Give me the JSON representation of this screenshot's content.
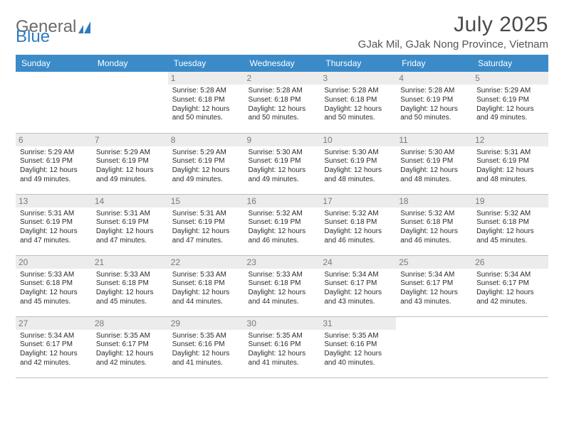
{
  "brand": {
    "name_a": "General",
    "name_b": "Blue"
  },
  "title": {
    "month": "July 2025",
    "location": "GJak Mil, GJak Nong Province, Vietnam"
  },
  "colors": {
    "header_bg": "#3b8bc9",
    "header_text": "#ffffff",
    "daynum_bg": "#ececec",
    "daynum_text": "#7a7a7a",
    "body_text": "#2b2b2b",
    "divider": "#bfbfbf",
    "brand_gray": "#6b6b6b",
    "brand_blue": "#2f7bbf"
  },
  "weekdays": [
    "Sunday",
    "Monday",
    "Tuesday",
    "Wednesday",
    "Thursday",
    "Friday",
    "Saturday"
  ],
  "weeks": [
    [
      {
        "n": "",
        "sr": "",
        "ss": "",
        "dl": ""
      },
      {
        "n": "",
        "sr": "",
        "ss": "",
        "dl": ""
      },
      {
        "n": "1",
        "sr": "Sunrise: 5:28 AM",
        "ss": "Sunset: 6:18 PM",
        "dl": "Daylight: 12 hours and 50 minutes."
      },
      {
        "n": "2",
        "sr": "Sunrise: 5:28 AM",
        "ss": "Sunset: 6:18 PM",
        "dl": "Daylight: 12 hours and 50 minutes."
      },
      {
        "n": "3",
        "sr": "Sunrise: 5:28 AM",
        "ss": "Sunset: 6:18 PM",
        "dl": "Daylight: 12 hours and 50 minutes."
      },
      {
        "n": "4",
        "sr": "Sunrise: 5:28 AM",
        "ss": "Sunset: 6:19 PM",
        "dl": "Daylight: 12 hours and 50 minutes."
      },
      {
        "n": "5",
        "sr": "Sunrise: 5:29 AM",
        "ss": "Sunset: 6:19 PM",
        "dl": "Daylight: 12 hours and 49 minutes."
      }
    ],
    [
      {
        "n": "6",
        "sr": "Sunrise: 5:29 AM",
        "ss": "Sunset: 6:19 PM",
        "dl": "Daylight: 12 hours and 49 minutes."
      },
      {
        "n": "7",
        "sr": "Sunrise: 5:29 AM",
        "ss": "Sunset: 6:19 PM",
        "dl": "Daylight: 12 hours and 49 minutes."
      },
      {
        "n": "8",
        "sr": "Sunrise: 5:29 AM",
        "ss": "Sunset: 6:19 PM",
        "dl": "Daylight: 12 hours and 49 minutes."
      },
      {
        "n": "9",
        "sr": "Sunrise: 5:30 AM",
        "ss": "Sunset: 6:19 PM",
        "dl": "Daylight: 12 hours and 49 minutes."
      },
      {
        "n": "10",
        "sr": "Sunrise: 5:30 AM",
        "ss": "Sunset: 6:19 PM",
        "dl": "Daylight: 12 hours and 48 minutes."
      },
      {
        "n": "11",
        "sr": "Sunrise: 5:30 AM",
        "ss": "Sunset: 6:19 PM",
        "dl": "Daylight: 12 hours and 48 minutes."
      },
      {
        "n": "12",
        "sr": "Sunrise: 5:31 AM",
        "ss": "Sunset: 6:19 PM",
        "dl": "Daylight: 12 hours and 48 minutes."
      }
    ],
    [
      {
        "n": "13",
        "sr": "Sunrise: 5:31 AM",
        "ss": "Sunset: 6:19 PM",
        "dl": "Daylight: 12 hours and 47 minutes."
      },
      {
        "n": "14",
        "sr": "Sunrise: 5:31 AM",
        "ss": "Sunset: 6:19 PM",
        "dl": "Daylight: 12 hours and 47 minutes."
      },
      {
        "n": "15",
        "sr": "Sunrise: 5:31 AM",
        "ss": "Sunset: 6:19 PM",
        "dl": "Daylight: 12 hours and 47 minutes."
      },
      {
        "n": "16",
        "sr": "Sunrise: 5:32 AM",
        "ss": "Sunset: 6:19 PM",
        "dl": "Daylight: 12 hours and 46 minutes."
      },
      {
        "n": "17",
        "sr": "Sunrise: 5:32 AM",
        "ss": "Sunset: 6:18 PM",
        "dl": "Daylight: 12 hours and 46 minutes."
      },
      {
        "n": "18",
        "sr": "Sunrise: 5:32 AM",
        "ss": "Sunset: 6:18 PM",
        "dl": "Daylight: 12 hours and 46 minutes."
      },
      {
        "n": "19",
        "sr": "Sunrise: 5:32 AM",
        "ss": "Sunset: 6:18 PM",
        "dl": "Daylight: 12 hours and 45 minutes."
      }
    ],
    [
      {
        "n": "20",
        "sr": "Sunrise: 5:33 AM",
        "ss": "Sunset: 6:18 PM",
        "dl": "Daylight: 12 hours and 45 minutes."
      },
      {
        "n": "21",
        "sr": "Sunrise: 5:33 AM",
        "ss": "Sunset: 6:18 PM",
        "dl": "Daylight: 12 hours and 45 minutes."
      },
      {
        "n": "22",
        "sr": "Sunrise: 5:33 AM",
        "ss": "Sunset: 6:18 PM",
        "dl": "Daylight: 12 hours and 44 minutes."
      },
      {
        "n": "23",
        "sr": "Sunrise: 5:33 AM",
        "ss": "Sunset: 6:18 PM",
        "dl": "Daylight: 12 hours and 44 minutes."
      },
      {
        "n": "24",
        "sr": "Sunrise: 5:34 AM",
        "ss": "Sunset: 6:17 PM",
        "dl": "Daylight: 12 hours and 43 minutes."
      },
      {
        "n": "25",
        "sr": "Sunrise: 5:34 AM",
        "ss": "Sunset: 6:17 PM",
        "dl": "Daylight: 12 hours and 43 minutes."
      },
      {
        "n": "26",
        "sr": "Sunrise: 5:34 AM",
        "ss": "Sunset: 6:17 PM",
        "dl": "Daylight: 12 hours and 42 minutes."
      }
    ],
    [
      {
        "n": "27",
        "sr": "Sunrise: 5:34 AM",
        "ss": "Sunset: 6:17 PM",
        "dl": "Daylight: 12 hours and 42 minutes."
      },
      {
        "n": "28",
        "sr": "Sunrise: 5:35 AM",
        "ss": "Sunset: 6:17 PM",
        "dl": "Daylight: 12 hours and 42 minutes."
      },
      {
        "n": "29",
        "sr": "Sunrise: 5:35 AM",
        "ss": "Sunset: 6:16 PM",
        "dl": "Daylight: 12 hours and 41 minutes."
      },
      {
        "n": "30",
        "sr": "Sunrise: 5:35 AM",
        "ss": "Sunset: 6:16 PM",
        "dl": "Daylight: 12 hours and 41 minutes."
      },
      {
        "n": "31",
        "sr": "Sunrise: 5:35 AM",
        "ss": "Sunset: 6:16 PM",
        "dl": "Daylight: 12 hours and 40 minutes."
      },
      {
        "n": "",
        "sr": "",
        "ss": "",
        "dl": ""
      },
      {
        "n": "",
        "sr": "",
        "ss": "",
        "dl": ""
      }
    ]
  ]
}
